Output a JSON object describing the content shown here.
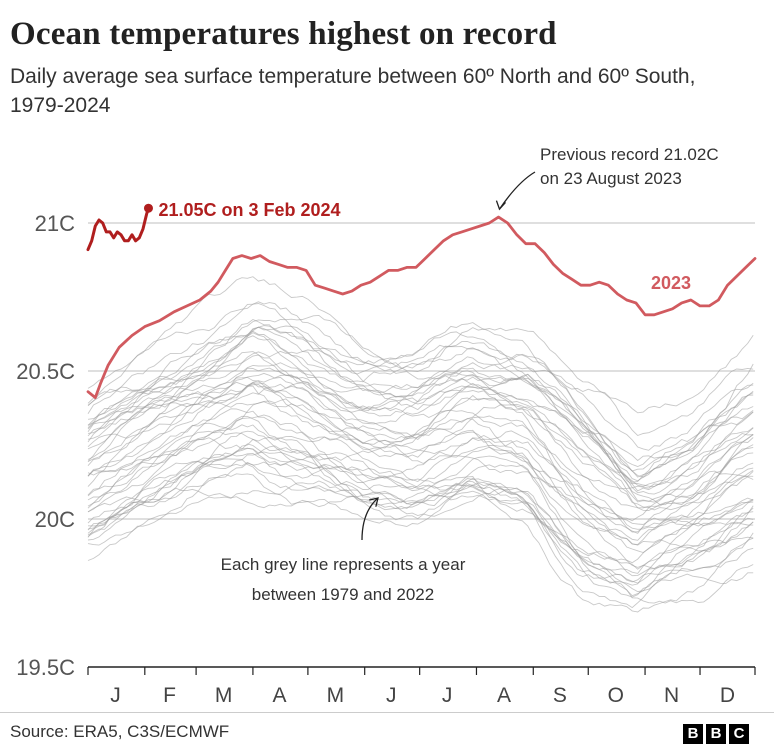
{
  "title": "Ocean temperatures highest on record",
  "subtitle": "Daily average sea surface temperature between 60º North and 60º South, 1979-2024",
  "source": "Source: ERA5, C3S/ECMWF",
  "logo": [
    "B",
    "B",
    "C"
  ],
  "colors": {
    "record_2024": "#b01e1e",
    "year_2023": "#d15a5f",
    "historic": "#9a9a9a",
    "grid": "#cccccc"
  },
  "annotations": {
    "latest": "21.05C on 3 Feb 2024",
    "previous_line1": "Previous record 21.02C",
    "previous_line2": "on 23 August 2023",
    "label_2023": "2023",
    "grey_line1": "Each grey line represents a year",
    "grey_line2": "between 1979 and 2022"
  },
  "chart_data": {
    "type": "line",
    "title": "Ocean temperatures highest on record",
    "xlabel": "",
    "ylabel": "",
    "y_ticks": [
      "21C",
      "20.5C",
      "20C",
      "19.5C"
    ],
    "ylim": [
      19.5,
      21.15
    ],
    "x_ticks": [
      "J",
      "F",
      "M",
      "A",
      "M",
      "J",
      "J",
      "A",
      "S",
      "O",
      "N",
      "D"
    ],
    "grid": true,
    "series": [
      {
        "name": "2024",
        "x": [
          1,
          3,
          5,
          7,
          9,
          11,
          13,
          15,
          17,
          19,
          21,
          23,
          25,
          27,
          29,
          31,
          33,
          34
        ],
        "y": [
          20.91,
          20.94,
          20.99,
          21.01,
          21.0,
          20.97,
          20.97,
          20.95,
          20.97,
          20.96,
          20.94,
          20.94,
          20.96,
          20.94,
          20.95,
          20.98,
          21.03,
          21.05
        ]
      },
      {
        "name": "2023",
        "x": [
          1,
          5,
          8,
          12,
          18,
          25,
          32,
          40,
          48,
          55,
          62,
          68,
          72,
          76,
          80,
          85,
          90,
          95,
          100,
          105,
          110,
          115,
          120,
          125,
          130,
          135,
          140,
          145,
          150,
          155,
          160,
          165,
          170,
          175,
          180,
          185,
          190,
          195,
          200,
          205,
          210,
          215,
          220,
          225,
          230,
          235,
          240,
          245,
          250,
          255,
          260,
          265,
          270,
          275,
          280,
          285,
          290,
          295,
          300,
          305,
          310,
          315,
          320,
          325,
          330,
          335,
          340,
          345,
          350,
          355,
          360,
          365
        ],
        "y": [
          20.43,
          20.41,
          20.46,
          20.52,
          20.58,
          20.62,
          20.65,
          20.67,
          20.7,
          20.72,
          20.74,
          20.77,
          20.8,
          20.84,
          20.88,
          20.89,
          20.88,
          20.89,
          20.87,
          20.86,
          20.85,
          20.85,
          20.84,
          20.79,
          20.78,
          20.77,
          20.76,
          20.77,
          20.79,
          20.8,
          20.82,
          20.84,
          20.84,
          20.85,
          20.85,
          20.88,
          20.91,
          20.94,
          20.96,
          20.97,
          20.98,
          20.99,
          21.0,
          21.02,
          21.0,
          20.96,
          20.93,
          20.93,
          20.9,
          20.86,
          20.83,
          20.81,
          20.79,
          20.79,
          20.8,
          20.79,
          20.76,
          20.74,
          20.73,
          20.69,
          20.69,
          20.7,
          20.71,
          20.73,
          20.74,
          20.72,
          20.72,
          20.74,
          20.79,
          20.82,
          20.85,
          20.88
        ]
      },
      {
        "name": "1979-2022",
        "note": "44 grey lines, one per year; approximate daily ranges read from the chart",
        "x": [
          1,
          30,
          60,
          90,
          120,
          150,
          180,
          210,
          240,
          270,
          300,
          330,
          365
        ],
        "y_low": [
          19.85,
          19.95,
          20.0,
          20.05,
          20.0,
          19.95,
          19.95,
          20.0,
          19.95,
          19.7,
          19.6,
          19.7,
          19.8
        ],
        "y_high": [
          20.45,
          20.55,
          20.7,
          20.8,
          20.75,
          20.65,
          20.6,
          20.7,
          20.65,
          20.5,
          20.35,
          20.4,
          20.6
        ]
      }
    ]
  }
}
